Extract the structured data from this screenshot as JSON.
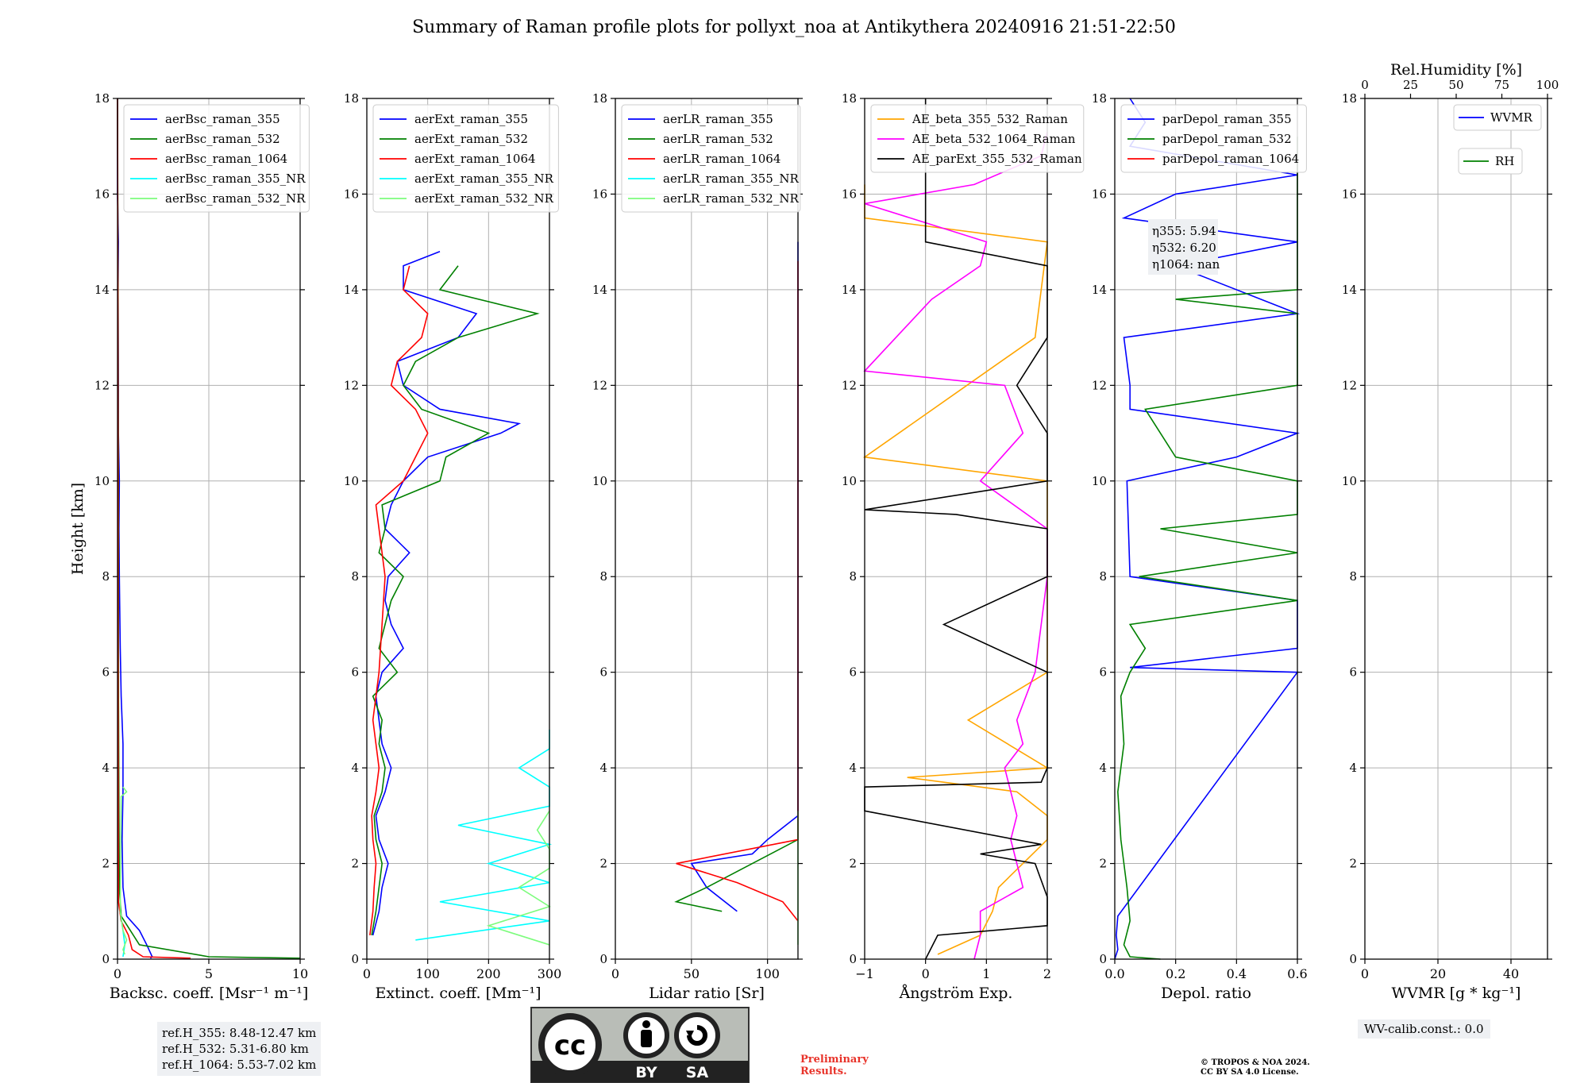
{
  "title": "Summary of Raman profile plots for pollyxt_noa at Antikythera 20240916 21:51-22:50",
  "ref_heights": [
    "ref.H_355: 8.48-12.47 km",
    "ref.H_532: 5.31-6.80 km",
    "ref.H_1064: 5.53-7.02 km"
  ],
  "wv_calib": "WV-calib.const.: 0.0",
  "preliminary": [
    "Preliminary",
    "Results."
  ],
  "copyright": [
    "© TROPOS & NOA 2024.",
    "CC BY SA 4.0 License."
  ],
  "license_logo": {
    "text_cc": "cc",
    "text_by": "BY",
    "text_sa": "SA"
  },
  "chart_data": [
    {
      "type": "line",
      "ylabel": "Height [km]",
      "xlabel": "Backsc. coeff. [Msr⁻¹ m⁻¹]",
      "xlim": [
        0,
        10
      ],
      "ylim": [
        0,
        18
      ],
      "xticks": [
        "0",
        "5",
        "10"
      ],
      "yticks": [
        "0",
        "2",
        "4",
        "6",
        "8",
        "10",
        "12",
        "14",
        "16",
        "18"
      ],
      "grid": true,
      "legend": "top-left",
      "series": [
        {
          "name": "aerBsc_raman_355",
          "color": "#0000ff",
          "y": [
            0.02,
            0.05,
            0.3,
            0.6,
            0.9,
            1.5,
            2.5,
            3.5,
            4.5,
            5.5,
            6.5,
            8,
            9,
            10,
            11,
            12,
            13,
            14,
            15,
            16,
            18
          ],
          "x": [
            1.8,
            1.9,
            1.6,
            1.2,
            0.5,
            0.3,
            0.25,
            0.3,
            0.3,
            0.2,
            0.15,
            0.1,
            0.08,
            0.1,
            0.05,
            0.05,
            0.04,
            0.03,
            0.05,
            0,
            0
          ]
        },
        {
          "name": "aerBsc_raman_532",
          "color": "#008000",
          "y": [
            0.02,
            0.05,
            0.3,
            0.6,
            0.9,
            1.5,
            3,
            6,
            10,
            14,
            18
          ],
          "x": [
            10,
            5,
            1.2,
            0.7,
            0.2,
            0.1,
            0.08,
            0.05,
            0.05,
            0.03,
            0
          ]
        },
        {
          "name": "aerBsc_raman_1064",
          "color": "#ff0000",
          "y": [
            0.02,
            0.05,
            0.2,
            0.5,
            0.8,
            1.2,
            3,
            6,
            10,
            14,
            18
          ],
          "x": [
            4,
            1.4,
            0.8,
            0.6,
            0.2,
            0.05,
            0.04,
            0.03,
            0.03,
            0.02,
            0
          ]
        },
        {
          "name": "aerBsc_raman_355_NR",
          "color": "#00ffff",
          "y": [
            0.05,
            0.3,
            0.6,
            1.0
          ],
          "x": [
            0.3,
            0.4,
            0.3,
            0.15
          ]
        },
        {
          "name": "aerBsc_raman_532_NR",
          "color": "#7cfc7c",
          "y": [
            0.1,
            0.2,
            0.4,
            0.6,
            1.0,
            3.4,
            3.5,
            3.6
          ],
          "x": [
            0.4,
            0.3,
            0.5,
            0.3,
            0.15,
            0.2,
            0.5,
            0.3
          ]
        }
      ]
    },
    {
      "type": "line",
      "xlabel": "Extinct. coeff. [Mm⁻¹]",
      "xlim": [
        0,
        300
      ],
      "ylim": [
        0,
        18
      ],
      "xticks": [
        "0",
        "100",
        "200",
        "300"
      ],
      "yticks": [
        "0",
        "2",
        "4",
        "6",
        "8",
        "10",
        "12",
        "14",
        "16",
        "18"
      ],
      "grid": true,
      "legend": "top-left",
      "series": [
        {
          "name": "aerExt_raman_355",
          "color": "#0000ff",
          "y": [
            0.5,
            1.0,
            1.5,
            2.0,
            2.5,
            3.0,
            3.5,
            4.0,
            4.5,
            5.0,
            5.5,
            6.0,
            6.5,
            7.0,
            7.5,
            8.0,
            8.5,
            9.0,
            9.5,
            10.0,
            10.5,
            11.0,
            11.2,
            11.5,
            12.0,
            12.5,
            13.0,
            13.5,
            14.0,
            14.5,
            14.8
          ],
          "x": [
            10,
            20,
            25,
            35,
            20,
            15,
            30,
            40,
            25,
            20,
            15,
            25,
            60,
            40,
            30,
            35,
            70,
            30,
            40,
            60,
            100,
            220,
            250,
            120,
            60,
            50,
            150,
            180,
            60,
            60,
            120
          ]
        },
        {
          "name": "aerExt_raman_532",
          "color": "#008000",
          "y": [
            0.5,
            1.0,
            1.5,
            2.0,
            2.5,
            3.0,
            3.5,
            4.0,
            4.5,
            5.0,
            5.5,
            6.0,
            6.5,
            7.0,
            7.5,
            8.0,
            8.5,
            9.0,
            9.5,
            10.0,
            10.5,
            11.0,
            11.5,
            12.0,
            12.5,
            13.0,
            13.5,
            14.0,
            14.5
          ],
          "x": [
            8,
            15,
            20,
            25,
            15,
            12,
            25,
            30,
            20,
            25,
            10,
            50,
            20,
            30,
            40,
            60,
            20,
            30,
            25,
            120,
            130,
            200,
            90,
            60,
            80,
            150,
            280,
            120,
            150
          ]
        },
        {
          "name": "aerExt_raman_1064",
          "color": "#ff0000",
          "y": [
            0.5,
            1.0,
            1.5,
            2.0,
            2.5,
            3.0,
            3.5,
            4.0,
            4.5,
            5.0,
            6.0,
            7.0,
            8.0,
            9.0,
            9.5,
            10.0,
            10.5,
            11.0,
            11.5,
            12.0,
            12.5,
            13.0,
            13.5,
            14.0,
            14.5
          ],
          "x": [
            5,
            10,
            12,
            15,
            10,
            8,
            15,
            20,
            15,
            10,
            20,
            25,
            30,
            20,
            15,
            60,
            80,
            100,
            80,
            40,
            50,
            90,
            100,
            60,
            70
          ]
        },
        {
          "name": "aerExt_raman_355_NR",
          "color": "#00ffff",
          "y": [
            0.4,
            0.8,
            1.2,
            1.6,
            2.0,
            2.4,
            2.8,
            3.2,
            3.6,
            4.0,
            4.4,
            4.8
          ],
          "x": [
            80,
            300,
            120,
            300,
            200,
            300,
            150,
            300,
            300,
            250,
            300,
            300
          ]
        },
        {
          "name": "aerExt_raman_532_NR",
          "color": "#7cfc7c",
          "y": [
            0.3,
            0.7,
            1.1,
            1.5,
            1.9,
            2.3,
            2.7,
            3.1
          ],
          "x": [
            300,
            200,
            300,
            250,
            300,
            300,
            280,
            300
          ]
        }
      ]
    },
    {
      "type": "line",
      "xlabel": "Lidar ratio [Sr]",
      "xlim": [
        0,
        120
      ],
      "ylim": [
        0,
        18
      ],
      "xticks": [
        "0",
        "50",
        "100"
      ],
      "yticks": [
        "0",
        "2",
        "4",
        "6",
        "8",
        "10",
        "12",
        "14",
        "16",
        "18"
      ],
      "grid": true,
      "legend": "top-left",
      "series": [
        {
          "name": "aerLR_raman_355",
          "color": "#0000ff",
          "y": [
            1.0,
            1.5,
            2.0,
            2.2,
            2.5,
            3.0,
            3.5,
            4.0,
            4.5,
            5.0,
            5.5,
            6.0,
            6.5,
            7.0,
            7.5,
            8.0,
            8.5,
            9.0,
            10.0,
            11.0,
            12.0,
            12.5,
            13.0,
            13.5,
            14.0,
            14.5,
            15.0
          ],
          "x": [
            80,
            60,
            50,
            90,
            100,
            120,
            120,
            120,
            120,
            120,
            120,
            120,
            120,
            120,
            120,
            120,
            120,
            120,
            120,
            120,
            120,
            120,
            120,
            120,
            120,
            120,
            120
          ]
        },
        {
          "name": "aerLR_raman_532",
          "color": "#008000",
          "y": [
            1.0,
            1.2,
            1.5,
            2.0,
            2.5,
            3.0
          ],
          "x": [
            70,
            40,
            60,
            90,
            120,
            120
          ]
        },
        {
          "name": "aerLR_raman_1064",
          "color": "#ff0000",
          "y": [
            0.8,
            1.2,
            1.6,
            2.0,
            2.5,
            3.0,
            4.0,
            5.0,
            6.0,
            7.0,
            8.0,
            9.0,
            10.0,
            11.0,
            12.0,
            13.0,
            14.0,
            14.6
          ],
          "x": [
            120,
            110,
            80,
            40,
            120,
            120,
            120,
            120,
            120,
            120,
            120,
            120,
            120,
            120,
            120,
            120,
            120,
            120
          ]
        },
        {
          "name": "aerLR_raman_355_NR",
          "color": "#00ffff",
          "y": [
            1.0
          ],
          "x": [
            120
          ]
        },
        {
          "name": "aerLR_raman_532_NR",
          "color": "#7cfc7c",
          "y": [
            0.3,
            0.7,
            1.1,
            1.5,
            1.9,
            2.3,
            2.7,
            3.1
          ],
          "x": [
            120,
            120,
            120,
            120,
            120,
            120,
            120,
            120
          ]
        }
      ]
    },
    {
      "type": "line",
      "xlabel": "Ångström Exp.",
      "xlim": [
        -1,
        2
      ],
      "ylim": [
        0,
        18
      ],
      "xticks": [
        "−1",
        "0",
        "1",
        "2"
      ],
      "yticks": [
        "0",
        "2",
        "4",
        "6",
        "8",
        "10",
        "12",
        "14",
        "16",
        "18"
      ],
      "grid": true,
      "legend": "top-left",
      "series": [
        {
          "name": "AE_beta_355_532_Raman",
          "color": "#ffa500",
          "y": [
            0.1,
            0.5,
            1.0,
            1.5,
            2.0,
            2.5,
            3.0,
            3.5,
            3.8,
            4.0,
            5.0,
            6.0,
            8.0,
            10.0,
            10.5,
            13.0,
            15.0,
            15.5,
            16.2
          ],
          "x": [
            0.2,
            0.9,
            1.1,
            1.2,
            1.6,
            2.0,
            2.0,
            1.5,
            -0.3,
            2.0,
            0.7,
            2.0,
            2.0,
            2.0,
            -1.0,
            1.8,
            2.0,
            -1.0,
            -1.0
          ]
        },
        {
          "name": "AE_beta_532_1064_Raman",
          "color": "#ff00ff",
          "y": [
            0.0,
            0.5,
            1.0,
            1.5,
            2.0,
            2.5,
            3.0,
            3.5,
            4.0,
            4.5,
            5.0,
            6.0,
            8.0,
            9.0,
            10.0,
            11.0,
            12.0,
            12.3,
            13.8,
            14.5,
            15.0,
            15.8,
            16.2,
            16.8,
            17.3
          ],
          "x": [
            0.8,
            0.9,
            0.9,
            1.6,
            1.5,
            1.4,
            1.5,
            1.4,
            1.3,
            1.6,
            1.5,
            1.8,
            2.0,
            2.0,
            0.9,
            1.6,
            1.3,
            -1.0,
            0.1,
            0.9,
            1.0,
            -1.0,
            0.8,
            1.9,
            2.0
          ]
        },
        {
          "name": "AE_parExt_355_532_Raman",
          "color": "#000000",
          "y": [
            0.0,
            0.5,
            0.7,
            1.3,
            2.0,
            2.2,
            2.4,
            3.1,
            3.6,
            3.7,
            4.0,
            5.0,
            6.0,
            7.0,
            8.0,
            9.0,
            9.3,
            9.4,
            10.0,
            11.0,
            12.0,
            13.0,
            14.0,
            14.5,
            15.0,
            16.0,
            17.0,
            18.0
          ],
          "x": [
            0.0,
            0.2,
            2.0,
            2.0,
            1.8,
            0.9,
            1.9,
            -1.0,
            -1.0,
            1.9,
            2.0,
            2.0,
            2.0,
            0.3,
            2.0,
            2.0,
            0.5,
            -1.0,
            2.0,
            2.0,
            1.5,
            2.0,
            2.0,
            2.0,
            0.0,
            0.0,
            0.0,
            0.0
          ]
        }
      ]
    },
    {
      "type": "line",
      "xlabel": "Depol. ratio",
      "xlim": [
        0,
        0.6
      ],
      "ylim": [
        0,
        18
      ],
      "xticks": [
        "0.0",
        "0.2",
        "0.4",
        "0.6"
      ],
      "yticks": [
        "0",
        "2",
        "4",
        "6",
        "8",
        "10",
        "12",
        "14",
        "16",
        "18"
      ],
      "grid": true,
      "legend": "top-left",
      "annotation": [
        "η355: 5.94",
        "η532: 6.20",
        "η1064: nan"
      ],
      "series": [
        {
          "name": "parDepol_raman_355",
          "color": "#0000ff",
          "y": [
            0.0,
            0.2,
            0.5,
            0.9,
            6.0,
            6.1,
            6.5,
            7.5,
            8.0,
            10.0,
            10.5,
            11.0,
            11.5,
            12.0,
            13.0,
            13.5,
            14.5,
            15.0,
            15.5,
            16.0,
            16.4,
            17.0,
            17.5,
            18.0
          ],
          "x": [
            0.0,
            0.01,
            0.005,
            0.01,
            0.6,
            0.05,
            0.6,
            0.6,
            0.05,
            0.04,
            0.4,
            0.6,
            0.05,
            0.05,
            0.03,
            0.6,
            0.2,
            0.6,
            0.03,
            0.2,
            0.6,
            0.05,
            0.1,
            0.05
          ]
        },
        {
          "name": "parDepol_raman_532",
          "color": "#008000",
          "y": [
            0.0,
            0.05,
            0.3,
            0.8,
            1.5,
            2.5,
            3.5,
            4.5,
            5.5,
            6.0,
            6.5,
            7.0,
            7.5,
            8.0,
            8.5,
            9.0,
            9.3,
            10.0,
            10.5,
            11.0,
            11.5,
            12.0,
            12.3,
            13.5,
            13.8,
            14.0,
            15.8,
            17.2
          ],
          "x": [
            0.15,
            0.05,
            0.03,
            0.05,
            0.04,
            0.02,
            0.01,
            0.03,
            0.02,
            0.05,
            0.1,
            0.05,
            0.6,
            0.08,
            0.6,
            0.15,
            0.6,
            0.6,
            0.2,
            0.15,
            0.1,
            0.6,
            0.6,
            0.6,
            0.2,
            0.6,
            0.6,
            0.6
          ]
        },
        {
          "name": "parDepol_raman_1064",
          "color": "#ff0000",
          "y": [],
          "x": []
        }
      ]
    },
    {
      "type": "line",
      "xlabel": "WVMR [g * kg⁻¹]",
      "x2label": "Rel.Humidity [%]",
      "xlim": [
        0,
        50
      ],
      "x2lim": [
        0,
        100
      ],
      "ylim": [
        0,
        18
      ],
      "xticks": [
        "0",
        "20",
        "40"
      ],
      "x2ticks": [
        "0",
        "25",
        "50",
        "75",
        "100"
      ],
      "yticks": [
        "0",
        "2",
        "4",
        "6",
        "8",
        "10",
        "12",
        "14",
        "16",
        "18"
      ],
      "grid": true,
      "legend": "top-right",
      "series": [
        {
          "name": "WVMR",
          "color": "#0000ff",
          "y": [],
          "x": []
        },
        {
          "name": "RH",
          "color": "#008000",
          "y": [],
          "x": []
        }
      ]
    }
  ]
}
